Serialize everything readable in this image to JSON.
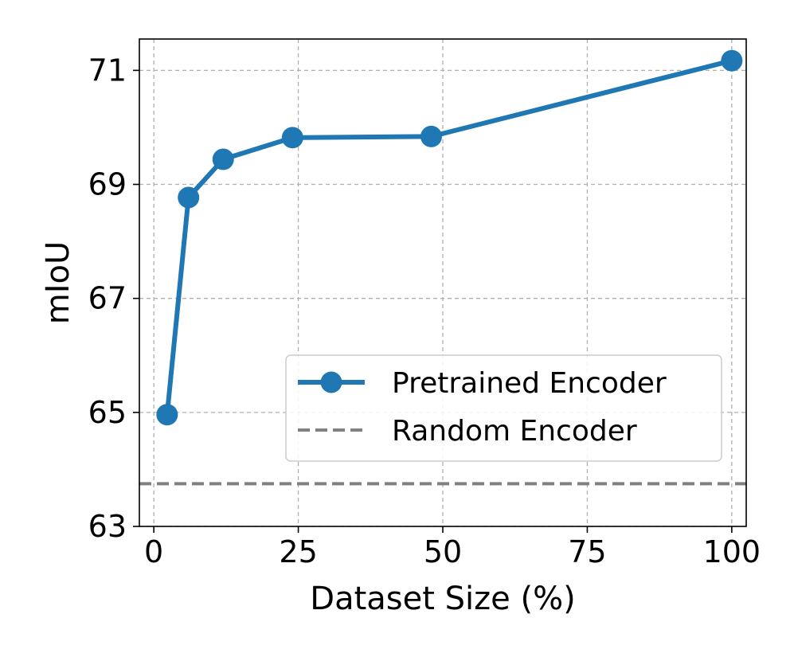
{
  "chart_data": {
    "type": "line",
    "xlabel": "Dataset Size (%)",
    "ylabel": "mIoU",
    "xlim": [
      -2.5,
      102.5
    ],
    "ylim": [
      63,
      71.55
    ],
    "x_ticks": [
      0,
      25,
      50,
      75,
      100
    ],
    "y_ticks": [
      63,
      65,
      67,
      69,
      71
    ],
    "grid": true,
    "legend_position": "lower-right",
    "series": [
      {
        "name": "Pretrained Encoder",
        "style": "solid-with-markers",
        "color": "#1f77b4",
        "x": [
          2.3,
          6.0,
          12.0,
          24.0,
          48.0,
          100.0
        ],
        "y": [
          64.96,
          68.77,
          69.44,
          69.82,
          69.84,
          71.17
        ]
      },
      {
        "name": "Random Encoder",
        "style": "dashed-horizontal",
        "color": "#808080",
        "y": 63.75
      }
    ]
  }
}
